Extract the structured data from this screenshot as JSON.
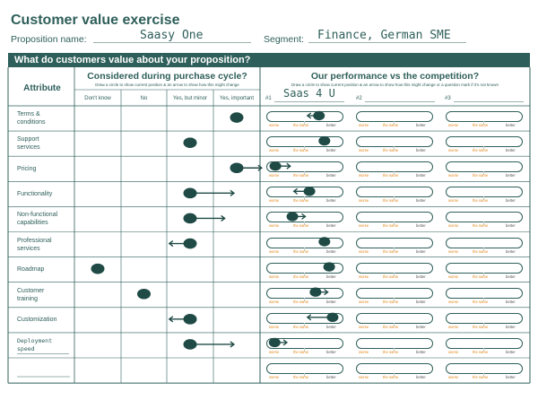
{
  "title": "Customer value exercise",
  "proposition": {
    "label": "Proposition name:",
    "value": "Saasy One"
  },
  "segment": {
    "label": "Segment:",
    "value": "Finance, German SME"
  },
  "banner": "What do customers value about your proposition?",
  "attribute_header": "Attribute",
  "purchase": {
    "title": "Considered during purchase cycle?",
    "instruction": "Draw a circle to show current position & an arrow to show how this might change",
    "columns": [
      "Don't know",
      "No",
      "Yes, but minor",
      "Yes, important"
    ]
  },
  "performance": {
    "title": "Our performance vs the competition?",
    "instruction": "Draw a circle to show current position & an arrow to show how this might change or a question mark if it's not known",
    "competitors": [
      {
        "number": "#1",
        "name": "Saas 4 U"
      },
      {
        "number": "#2",
        "name": ""
      },
      {
        "number": "#3",
        "name": ""
      }
    ],
    "scale": {
      "worse": "worse",
      "same": "the same",
      "better": "better"
    }
  },
  "rows": [
    {
      "attribute": "Terms &\nconditions",
      "handwritten": false,
      "purchase": {
        "col": 3,
        "to": null
      },
      "perf": {
        "pos": 0.72,
        "to": 0.55
      }
    },
    {
      "attribute": "Support\nservices",
      "handwritten": false,
      "purchase": {
        "col": 2,
        "to": null
      },
      "perf": {
        "pos": 0.8,
        "to": null
      }
    },
    {
      "attribute": "Pricing",
      "handwritten": false,
      "purchase": {
        "col": 3,
        "to": 3.55
      },
      "perf": {
        "pos": 0.08,
        "to": 0.3
      }
    },
    {
      "attribute": "Functionality",
      "handwritten": false,
      "purchase": {
        "col": 2,
        "to": 2.95
      },
      "perf": {
        "pos": 0.58,
        "to": 0.35
      }
    },
    {
      "attribute": "Non-functional\ncapabilities",
      "handwritten": false,
      "purchase": {
        "col": 2,
        "to": 2.75
      },
      "perf": {
        "pos": 0.33,
        "to": 0.52
      }
    },
    {
      "attribute": "Professional\nservices",
      "handwritten": false,
      "purchase": {
        "col": 2,
        "to": 1.55
      },
      "perf": {
        "pos": 0.8,
        "to": null
      }
    },
    {
      "attribute": "Roadmap",
      "handwritten": false,
      "purchase": {
        "col": 0,
        "to": null
      },
      "perf": {
        "pos": 0.87,
        "to": null
      }
    },
    {
      "attribute": "Customer\ntraining",
      "handwritten": false,
      "purchase": {
        "col": 1,
        "to": null
      },
      "perf": {
        "pos": 0.67,
        "to": 0.85
      }
    },
    {
      "attribute": "Customization",
      "handwritten": false,
      "purchase": {
        "col": 2,
        "to": 1.55
      },
      "perf": {
        "pos": 0.92,
        "to": 0.55
      }
    },
    {
      "attribute": "Deployment\nspeed",
      "handwritten": true,
      "purchase": {
        "col": 2,
        "to": 2.95
      },
      "perf": {
        "pos": 0.07,
        "to": 0.25
      }
    },
    {
      "attribute": "",
      "handwritten": false,
      "purchase": null,
      "perf": null
    }
  ]
}
